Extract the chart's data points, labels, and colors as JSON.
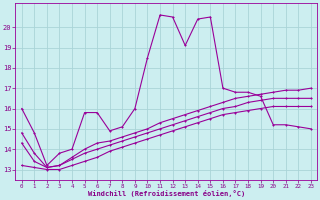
{
  "background_color": "#cceef0",
  "grid_color": "#aad4d8",
  "line_color": "#990099",
  "xlabel": "Windchill (Refroidissement éolien,°C)",
  "xlabel_color": "#880088",
  "tick_color": "#880088",
  "xlim": [
    -0.5,
    23.5
  ],
  "ylim": [
    12.5,
    21.2
  ],
  "yticks": [
    13,
    14,
    15,
    16,
    17,
    18,
    19,
    20
  ],
  "xticks": [
    0,
    1,
    2,
    3,
    4,
    5,
    6,
    7,
    8,
    9,
    10,
    11,
    12,
    13,
    14,
    15,
    16,
    17,
    18,
    19,
    20,
    21,
    22,
    23
  ],
  "series1_x": [
    0,
    1,
    2,
    3,
    4,
    5,
    6,
    7,
    8,
    9,
    10,
    11,
    12,
    13,
    14,
    15,
    16,
    17,
    18,
    19,
    20,
    21,
    22,
    23
  ],
  "series1_y": [
    16.0,
    14.8,
    13.2,
    13.8,
    14.0,
    15.8,
    15.8,
    14.9,
    15.1,
    16.0,
    18.5,
    20.6,
    20.5,
    19.1,
    20.4,
    20.5,
    17.0,
    16.8,
    16.8,
    16.6,
    15.2,
    15.2,
    15.1,
    15.0
  ],
  "series2_x": [
    0,
    1,
    2,
    3,
    4,
    5,
    6,
    7,
    8,
    9,
    10,
    11,
    12,
    13,
    14,
    15,
    16,
    17,
    18,
    19,
    20,
    21,
    22,
    23
  ],
  "series2_y": [
    14.8,
    13.8,
    13.1,
    13.2,
    13.6,
    14.0,
    14.3,
    14.4,
    14.6,
    14.8,
    15.0,
    15.3,
    15.5,
    15.7,
    15.9,
    16.1,
    16.3,
    16.5,
    16.6,
    16.7,
    16.8,
    16.9,
    16.9,
    17.0
  ],
  "series3_x": [
    0,
    1,
    2,
    3,
    4,
    5,
    6,
    7,
    8,
    9,
    10,
    11,
    12,
    13,
    14,
    15,
    16,
    17,
    18,
    19,
    20,
    21,
    22,
    23
  ],
  "series3_y": [
    14.3,
    13.4,
    13.1,
    13.2,
    13.5,
    13.8,
    14.0,
    14.2,
    14.4,
    14.6,
    14.8,
    15.0,
    15.2,
    15.4,
    15.6,
    15.8,
    16.0,
    16.1,
    16.3,
    16.4,
    16.5,
    16.5,
    16.5,
    16.5
  ],
  "series4_x": [
    0,
    1,
    2,
    3,
    4,
    5,
    6,
    7,
    8,
    9,
    10,
    11,
    12,
    13,
    14,
    15,
    16,
    17,
    18,
    19,
    20,
    21,
    22,
    23
  ],
  "series4_y": [
    13.2,
    13.1,
    13.0,
    13.0,
    13.2,
    13.4,
    13.6,
    13.9,
    14.1,
    14.3,
    14.5,
    14.7,
    14.9,
    15.1,
    15.3,
    15.5,
    15.7,
    15.8,
    15.9,
    16.0,
    16.1,
    16.1,
    16.1,
    16.1
  ]
}
